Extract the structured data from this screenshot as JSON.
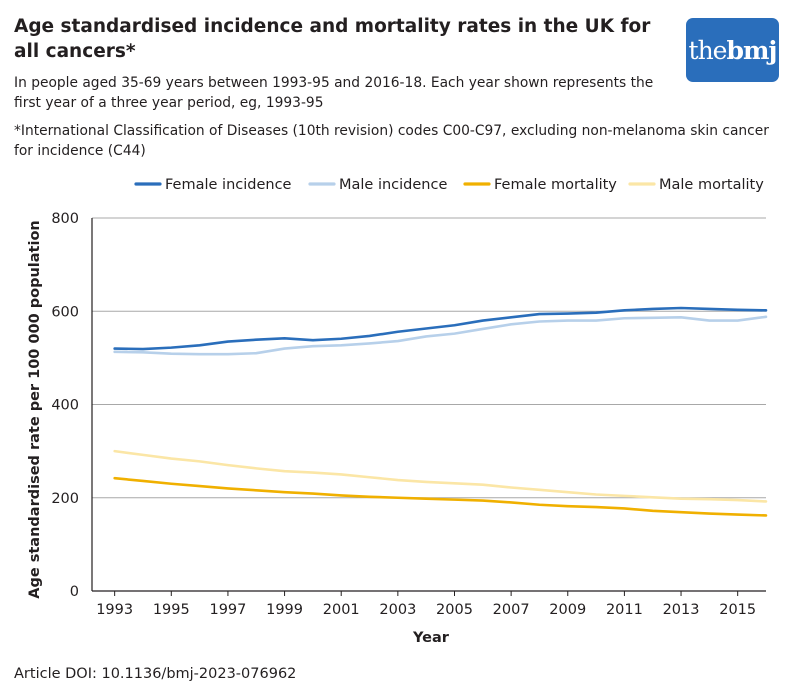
{
  "header": {
    "title": "Age standardised incidence and mortality rates in the UK for all cancers*",
    "subtitle": "In people aged 35-69 years between 1993-95 and 2016-18. Each year shown represents the first year of a three year period, eg, 1993-95",
    "note": "*International Classification of Diseases (10th revision) codes C00-C97, excluding non-melanoma skin cancer for incidence (C44)"
  },
  "logo": {
    "part1": "the",
    "part2": "bmj"
  },
  "footer": {
    "doi": "Article DOI: 10.1136/bmj-2023-076962"
  },
  "chart_data": {
    "type": "line",
    "title": "Age standardised incidence and mortality rates in the UK for all cancers*",
    "xlabel": "Year",
    "ylabel": "Age standardised rate per 100 000 population",
    "xlim": [
      1992.2,
      2016
    ],
    "ylim": [
      0,
      800
    ],
    "yticks": [
      0,
      200,
      400,
      600,
      800
    ],
    "xticks": [
      1993,
      1995,
      1997,
      1999,
      2001,
      2003,
      2005,
      2007,
      2009,
      2011,
      2013,
      2015
    ],
    "grid": "horizontal",
    "legend": "top",
    "x": [
      1993,
      1994,
      1995,
      1996,
      1997,
      1998,
      1999,
      2000,
      2001,
      2002,
      2003,
      2004,
      2005,
      2006,
      2007,
      2008,
      2009,
      2010,
      2011,
      2012,
      2013,
      2014,
      2015,
      2016
    ],
    "series": [
      {
        "name": "Female incidence",
        "color": "#2a6ebb",
        "width": 2.6,
        "values": [
          520,
          519,
          522,
          527,
          535,
          539,
          542,
          538,
          541,
          547,
          556,
          563,
          570,
          580,
          587,
          594,
          595,
          597,
          602,
          605,
          607,
          605,
          603,
          602
        ]
      },
      {
        "name": "Male incidence",
        "color": "#b7d0ea",
        "width": 2.6,
        "values": [
          513,
          512,
          509,
          508,
          508,
          510,
          520,
          525,
          527,
          531,
          536,
          546,
          552,
          562,
          572,
          578,
          580,
          580,
          585,
          586,
          587,
          580,
          580,
          588
        ]
      },
      {
        "name": "Female mortality",
        "color": "#f0b000",
        "width": 2.6,
        "values": [
          242,
          236,
          230,
          225,
          220,
          216,
          212,
          209,
          205,
          202,
          200,
          198,
          196,
          194,
          190,
          185,
          182,
          180,
          177,
          172,
          169,
          166,
          164,
          162
        ]
      },
      {
        "name": "Male mortality",
        "color": "#fbe6a6",
        "width": 2.6,
        "values": [
          300,
          292,
          284,
          278,
          270,
          263,
          257,
          254,
          250,
          244,
          238,
          234,
          231,
          228,
          222,
          217,
          212,
          207,
          204,
          201,
          198,
          197,
          195,
          192
        ]
      }
    ]
  }
}
